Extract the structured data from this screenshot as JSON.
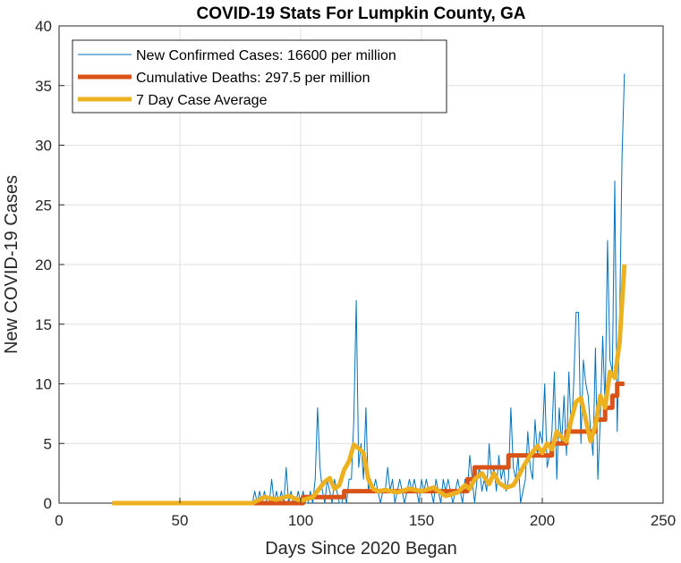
{
  "chart_data": {
    "type": "line",
    "title": "COVID-19 Stats For Lumpkin County, GA",
    "xlabel": "Days Since 2020 Began",
    "ylabel": "New COVID-19 Cases",
    "xlim": [
      0,
      250
    ],
    "ylim": [
      0,
      40
    ],
    "xticks": [
      0,
      50,
      100,
      150,
      200,
      250
    ],
    "yticks": [
      0,
      5,
      10,
      15,
      20,
      25,
      30,
      35,
      40
    ],
    "grid": true,
    "legend_position": "top-left",
    "series": [
      {
        "name": "New Confirmed Cases: 16600 per million",
        "color": "#0072bd",
        "style": "thin",
        "x": [
          22,
          30,
          40,
          50,
          60,
          70,
          78,
          80,
          81,
          82,
          83,
          84,
          85,
          86,
          87,
          88,
          89,
          90,
          91,
          92,
          93,
          94,
          95,
          96,
          97,
          98,
          99,
          100,
          101,
          102,
          103,
          104,
          105,
          106,
          107,
          108,
          109,
          110,
          111,
          112,
          113,
          114,
          115,
          116,
          117,
          118,
          119,
          120,
          121,
          122,
          123,
          124,
          125,
          126,
          127,
          128,
          129,
          130,
          131,
          132,
          133,
          134,
          135,
          136,
          137,
          138,
          139,
          140,
          141,
          142,
          143,
          144,
          145,
          146,
          147,
          148,
          149,
          150,
          151,
          152,
          153,
          154,
          155,
          156,
          157,
          158,
          159,
          160,
          161,
          162,
          163,
          164,
          165,
          166,
          167,
          168,
          169,
          170,
          171,
          172,
          173,
          174,
          175,
          176,
          177,
          178,
          179,
          180,
          181,
          182,
          183,
          184,
          185,
          186,
          187,
          188,
          189,
          190,
          191,
          192,
          193,
          194,
          195,
          196,
          197,
          198,
          199,
          200,
          201,
          202,
          203,
          204,
          205,
          206,
          207,
          208,
          209,
          210,
          211,
          212,
          213,
          214,
          215,
          216,
          217,
          218,
          219,
          220,
          221,
          222,
          223,
          224,
          225,
          226,
          227,
          228,
          229,
          230,
          231,
          232,
          233,
          234
        ],
        "y": [
          0,
          0,
          0,
          0,
          0,
          0,
          0,
          0,
          1,
          0,
          1,
          0,
          1,
          0,
          0,
          2,
          0,
          1,
          0,
          1,
          0,
          3,
          0,
          1,
          0,
          0,
          1,
          0,
          1,
          0,
          0,
          1,
          0,
          2,
          8,
          3,
          1,
          0,
          2,
          1,
          0,
          2,
          1,
          0,
          0,
          1,
          0,
          2,
          2,
          7,
          17,
          3,
          5,
          2,
          8,
          1,
          2,
          1,
          2,
          1,
          0,
          1,
          1,
          3,
          1,
          2,
          0,
          1,
          2,
          1,
          0,
          1,
          2,
          1,
          2,
          1,
          0,
          2,
          1,
          2,
          1,
          1,
          0,
          2,
          1,
          0,
          2,
          1,
          2,
          1,
          0,
          1,
          2,
          1,
          0,
          2,
          1,
          4,
          2,
          0,
          2,
          3,
          1,
          2,
          1,
          5,
          2,
          3,
          1,
          4,
          2,
          3,
          1,
          2,
          8,
          3,
          2,
          4,
          0,
          1,
          2,
          6,
          3,
          2,
          7,
          4,
          6,
          5,
          10,
          3,
          4,
          6,
          11,
          2,
          8,
          5,
          9,
          4,
          11,
          6,
          10,
          16,
          16,
          5,
          12,
          10,
          9,
          6,
          4,
          13,
          2,
          7,
          14,
          8,
          22,
          12,
          11,
          27,
          6,
          15,
          29,
          36
        ]
      },
      {
        "name": "Cumulative Deaths: 297.5 per million",
        "color": "#d95319",
        "style": "thick",
        "x": [
          22,
          80,
          80,
          101,
          101,
          118,
          118,
          164,
          164,
          169,
          169,
          172,
          172,
          178,
          178,
          186,
          186,
          194,
          194,
          204,
          204,
          210,
          210,
          222,
          222,
          226,
          226,
          229,
          229,
          231,
          231,
          234
        ],
        "y": [
          0,
          0,
          0,
          0,
          0.5,
          0.5,
          1,
          1,
          1,
          1,
          2,
          2,
          3,
          3,
          3,
          3,
          4,
          4,
          4,
          4,
          5,
          5,
          6,
          6,
          7,
          7,
          8,
          8,
          9,
          9,
          10,
          10
        ]
      },
      {
        "name": "7 Day Case Average",
        "color": "#edb120",
        "style": "thick",
        "x": [
          22,
          60,
          80,
          85,
          90,
          95,
          100,
          105,
          110,
          112,
          114,
          116,
          118,
          120,
          122,
          124,
          126,
          128,
          130,
          132,
          135,
          140,
          145,
          150,
          155,
          160,
          165,
          168,
          170,
          172,
          175,
          178,
          180,
          182,
          185,
          188,
          190,
          192,
          195,
          198,
          200,
          202,
          204,
          206,
          208,
          210,
          212,
          214,
          216,
          218,
          220,
          222,
          224,
          226,
          228,
          230,
          232,
          234
        ],
        "y": [
          0,
          0,
          0,
          0.5,
          0.3,
          0.6,
          0.2,
          0.5,
          1.8,
          2.1,
          1.2,
          1.5,
          2.8,
          3.5,
          4.9,
          4.6,
          4.2,
          2.0,
          1.2,
          1.0,
          1.1,
          0.9,
          1.2,
          1.0,
          1.3,
          0.6,
          0.9,
          1.5,
          1.2,
          2.0,
          2.5,
          1.6,
          2.5,
          1.7,
          1.3,
          1.5,
          2.2,
          3.0,
          4.0,
          4.8,
          4.2,
          5.0,
          4.5,
          6.0,
          5.5,
          5.2,
          7.0,
          8.5,
          8.8,
          7.0,
          5.2,
          6.5,
          9.0,
          8.0,
          11.0,
          10.5,
          13.5,
          20.0
        ]
      }
    ]
  }
}
